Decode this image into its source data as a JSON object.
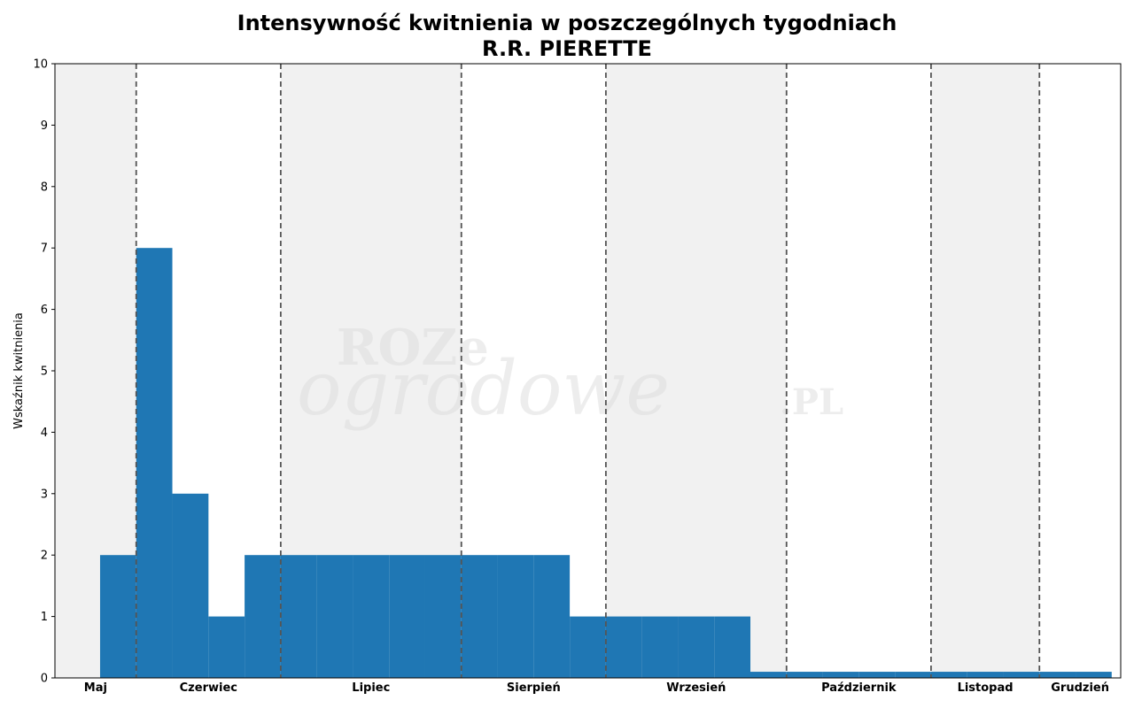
{
  "chart_data": {
    "type": "bar",
    "title": "Intensywność kwitnienia w poszczególnych tygodniach",
    "subtitle": "R.R. PIERETTE",
    "xlabel": "",
    "ylabel": "Wskaźnik kwitnienia",
    "ylim": [
      0,
      10
    ],
    "yticks": [
      0,
      1,
      2,
      3,
      4,
      5,
      6,
      7,
      8,
      9,
      10
    ],
    "xlim": [
      0,
      29.5
    ],
    "grid": false,
    "legend": "none",
    "bar_color": "#1f77b4",
    "month_band_color": "#f1f1f1",
    "month_divider_color": "#555555",
    "months": [
      {
        "label": "Maj",
        "start": 0,
        "end": 2.25
      },
      {
        "label": "Czerwiec",
        "start": 2.25,
        "end": 6.25
      },
      {
        "label": "Lipiec",
        "start": 6.25,
        "end": 11.25
      },
      {
        "label": "Sierpień",
        "start": 11.25,
        "end": 15.25
      },
      {
        "label": "Wrzesień",
        "start": 15.25,
        "end": 20.25
      },
      {
        "label": "Październik",
        "start": 20.25,
        "end": 24.25
      },
      {
        "label": "Listopad",
        "start": 24.25,
        "end": 27.25
      },
      {
        "label": "Grudzień",
        "start": 27.25,
        "end": 29.5
      }
    ],
    "weeks": [
      1.75,
      2.75,
      3.75,
      4.75,
      5.75,
      6.75,
      7.75,
      8.75,
      9.75,
      10.75,
      11.75,
      12.75,
      13.75,
      14.75,
      15.75,
      16.75,
      17.75,
      18.75,
      19.75,
      20.75,
      21.75,
      22.75,
      23.75,
      24.75,
      25.75,
      26.75,
      27.75,
      28.75
    ],
    "values": [
      2,
      7,
      3,
      1,
      2,
      2,
      2,
      2,
      2,
      2,
      2,
      2,
      2,
      1,
      1,
      1,
      1,
      1,
      0.1,
      0.1,
      0.1,
      0.1,
      0.1,
      0.1,
      0.1,
      0.1,
      0.1,
      0.1
    ],
    "bar_width": 1
  },
  "watermark": {
    "line1": "ROZe",
    "line2": "ogrodowe",
    "suffix": ".PL"
  }
}
